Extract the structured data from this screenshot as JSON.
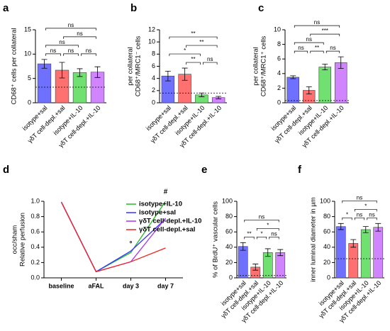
{
  "chart_data": [
    {
      "type": "bar",
      "panel": "a",
      "ylabel": [
        "CD68⁺ cells per collateral"
      ],
      "categories": [
        "isotype+sal",
        "γδT cell-depl.+sal",
        "isotype+IL-10",
        "γδT cell-depl.+IL-10"
      ],
      "values": [
        8.0,
        6.7,
        6.2,
        6.3
      ],
      "errors": [
        0.9,
        1.6,
        0.8,
        1.1
      ],
      "colors": [
        "#7070ff",
        "#ff7070",
        "#70e070",
        "#d085ff"
      ],
      "ylim": [
        0,
        15
      ],
      "yticks": [
        0,
        5,
        10,
        15
      ],
      "reference_line": 3.2,
      "significance": [
        {
          "from": 0,
          "to": 1,
          "label": "ns"
        },
        {
          "from": 1,
          "to": 2,
          "label": "ns"
        },
        {
          "from": 2,
          "to": 3,
          "label": "ns"
        },
        {
          "from": 0,
          "to": 2,
          "label": "ns"
        },
        {
          "from": 1,
          "to": 3,
          "label": "ns"
        },
        {
          "from": 0,
          "to": 3,
          "label": "ns"
        }
      ]
    },
    {
      "type": "bar",
      "panel": "b",
      "ylabel": [
        "CD68⁺/MRC1⁻ cells",
        "per collateral"
      ],
      "categories": [
        "isotype+sal",
        "γδT cell-depl.+sal",
        "isotype+IL-10",
        "γδT cell-depl.+IL-10"
      ],
      "values": [
        4.4,
        4.7,
        1.3,
        0.85
      ],
      "errors": [
        0.8,
        1.0,
        0.3,
        0.2
      ],
      "colors": [
        "#7070ff",
        "#ff7070",
        "#70e070",
        "#d085ff"
      ],
      "ylim": [
        0,
        12
      ],
      "yticks": [
        0,
        2,
        4,
        6,
        8,
        10,
        12
      ],
      "reference_line": 1.6,
      "significance": [
        {
          "from": 1,
          "to": 2,
          "label": "**"
        },
        {
          "from": 2,
          "to": 3,
          "label": "ns"
        },
        {
          "from": 0,
          "to": 2,
          "label": "*"
        },
        {
          "from": 1,
          "to": 3,
          "label": "**"
        },
        {
          "from": 0,
          "to": 3,
          "label": "**"
        }
      ]
    },
    {
      "type": "bar",
      "panel": "c",
      "ylabel": [
        "CD68⁺/MRC1⁺ cells",
        "per collateral"
      ],
      "categories": [
        "isotype+sal",
        "γδT cell-depl.+sal",
        "isotype+IL-10",
        "γδT cell-depl.+IL-10"
      ],
      "values": [
        3.5,
        1.7,
        4.9,
        5.5
      ],
      "errors": [
        0.2,
        0.5,
        0.4,
        0.8
      ],
      "colors": [
        "#7070ff",
        "#ff7070",
        "#70e070",
        "#d085ff"
      ],
      "ylim": [
        0,
        10
      ],
      "yticks": [
        0,
        2,
        4,
        6,
        8,
        10
      ],
      "reference_line": 0.3,
      "significance": [
        {
          "from": 0,
          "to": 1,
          "label": "ns"
        },
        {
          "from": 1,
          "to": 2,
          "label": "**"
        },
        {
          "from": 2,
          "to": 3,
          "label": "ns"
        },
        {
          "from": 0,
          "to": 2,
          "label": "ns"
        },
        {
          "from": 1,
          "to": 3,
          "label": "***"
        },
        {
          "from": 0,
          "to": 3,
          "label": "ns"
        }
      ]
    },
    {
      "type": "line",
      "panel": "d",
      "ylabel": [
        "Relative perfusion",
        "occ/sham"
      ],
      "categories": [
        "baseline",
        "aFAL",
        "day 3",
        "day 7"
      ],
      "series": [
        {
          "name": "isotype+IL-10",
          "color": "#22bb22",
          "values": [
            0.99,
            0.08,
            0.33,
            1.0
          ]
        },
        {
          "name": "isotype+sal",
          "color": "#3333ff",
          "values": [
            0.99,
            0.08,
            0.35,
            0.77
          ]
        },
        {
          "name": "γδT cell-depl.+IL-10",
          "color": "#aa33ee",
          "values": [
            0.99,
            0.08,
            0.21,
            0.78
          ]
        },
        {
          "name": "γδT cell-depl.+sal",
          "color": "#ee2222",
          "values": [
            0.99,
            0.08,
            0.21,
            0.39
          ]
        }
      ],
      "ylim": [
        0,
        1.0
      ],
      "yticks": [
        {
          "value": 0,
          "label": "0.0"
        },
        0.2,
        0.4,
        0.6,
        0.8,
        {
          "value": 1.0,
          "label": "1.0"
        }
      ],
      "legend": "upper right",
      "annotations": [
        {
          "text": "°",
          "x": "day 3",
          "y": 0.44
        },
        {
          "text": "#",
          "x": "day 7",
          "y": 1.12
        }
      ]
    },
    {
      "type": "bar",
      "panel": "e",
      "ylabel": [
        "% of BrdU⁺ vascular cells"
      ],
      "categories": [
        "isotype+sal",
        "γδT cell-depl.+sal",
        "isotype+IL-10",
        "γδT cell-depl.+IL-10"
      ],
      "values": [
        41,
        14,
        33,
        33
      ],
      "errors": [
        5,
        4,
        5,
        4
      ],
      "colors": [
        "#7070ff",
        "#ff7070",
        "#70e070",
        "#d085ff"
      ],
      "ylim": [
        0,
        100
      ],
      "yticks": [
        0,
        20,
        40,
        60,
        80,
        100
      ],
      "reference_line": 3,
      "significance": [
        {
          "from": 0,
          "to": 1,
          "label": "**"
        },
        {
          "from": 1,
          "to": 2,
          "label": "*"
        },
        {
          "from": 2,
          "to": 3,
          "label": "ns"
        },
        {
          "from": 1,
          "to": 3,
          "label": "*"
        },
        {
          "from": 0,
          "to": 3,
          "label": "ns"
        }
      ]
    },
    {
      "type": "bar",
      "panel": "f",
      "ylabel": [
        "inner luminal diameter in µm"
      ],
      "categories": [
        "isotype+sal",
        "γδT cell-depl.+sal",
        "isotype+IL-10",
        "γδT cell-depl.+IL-10"
      ],
      "values": [
        67,
        45,
        63,
        66
      ],
      "errors": [
        4,
        5,
        4,
        5
      ],
      "colors": [
        "#7070ff",
        "#ff7070",
        "#70e070",
        "#d085ff"
      ],
      "ylim": [
        0,
        100
      ],
      "yticks": [
        0,
        20,
        40,
        60,
        80,
        100
      ],
      "reference_line": 25,
      "significance": [
        {
          "from": 0,
          "to": 1,
          "label": "*"
        },
        {
          "from": 1,
          "to": 2,
          "label": "ns"
        },
        {
          "from": 2,
          "to": 3,
          "label": "ns"
        },
        {
          "from": 1,
          "to": 3,
          "label": "*"
        },
        {
          "from": 0,
          "to": 3,
          "label": "ns"
        }
      ]
    }
  ]
}
